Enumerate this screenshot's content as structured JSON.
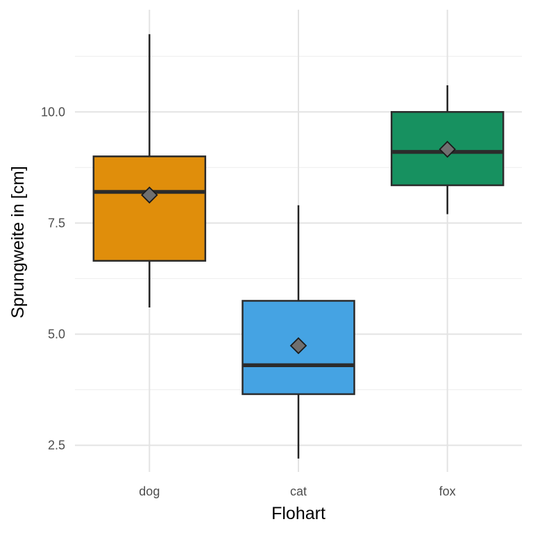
{
  "chart_data": {
    "type": "box",
    "xlabel": "Flohart",
    "ylabel": "Sprungweite in [cm]",
    "ylim": [
      1.9,
      12.3
    ],
    "yticks": [
      2.5,
      5.0,
      7.5,
      10.0
    ],
    "ytick_labels": [
      "2.5",
      "5.0",
      "7.5",
      "10.0"
    ],
    "minor_y_gridlines": [
      3.75,
      6.25,
      8.75,
      11.25
    ],
    "grid": true,
    "legend": "none",
    "categories": [
      "dog",
      "cat",
      "fox"
    ],
    "boxes": [
      {
        "category": "dog",
        "whisker_low": 5.6,
        "q1": 6.65,
        "median": 8.2,
        "q3": 9.0,
        "whisker_high": 11.75,
        "mean": 8.13,
        "color": "#E08E0B"
      },
      {
        "category": "cat",
        "whisker_low": 2.2,
        "q1": 3.65,
        "median": 4.3,
        "q3": 5.75,
        "whisker_high": 7.9,
        "mean": 4.74,
        "color": "#45A3E3"
      },
      {
        "category": "fox",
        "whisker_low": 7.7,
        "q1": 8.35,
        "median": 9.1,
        "q3": 10.0,
        "whisker_high": 10.6,
        "mean": 9.16,
        "color": "#179160"
      }
    ]
  }
}
